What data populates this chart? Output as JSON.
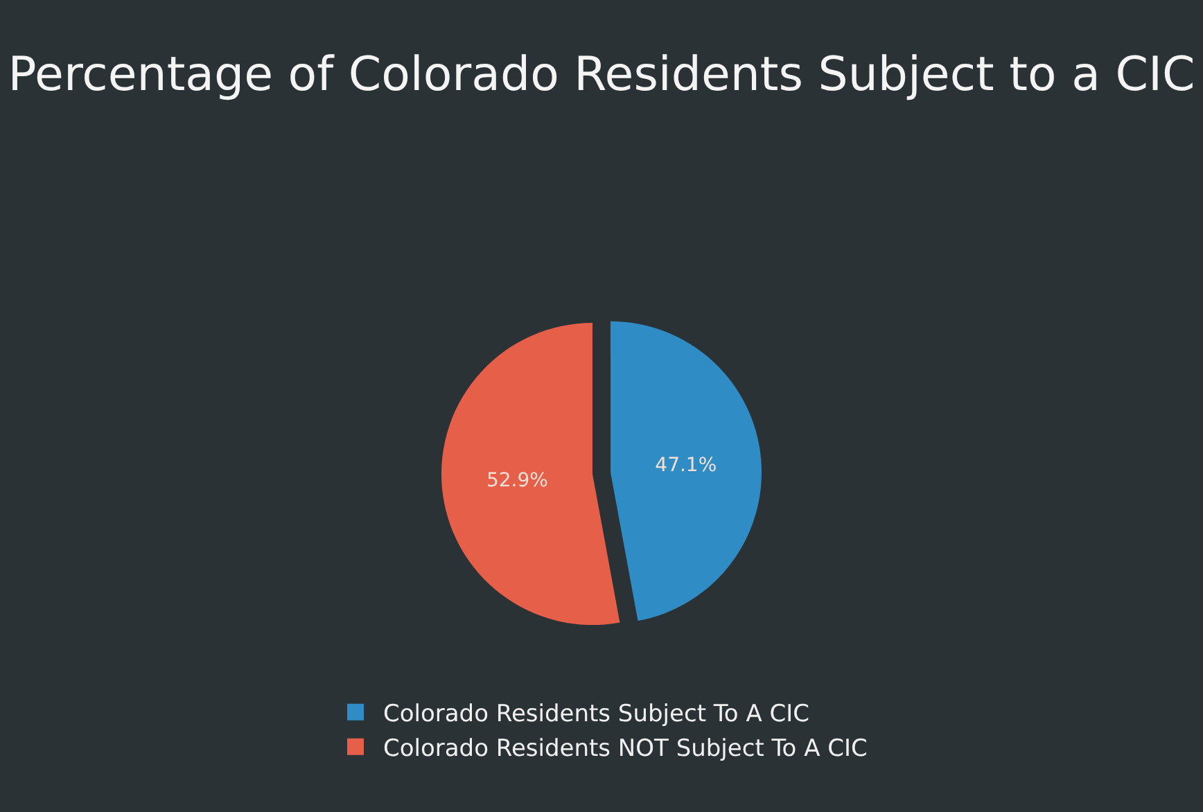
{
  "chart_data": {
    "type": "pie",
    "title": "Percentage of Colorado Residents Subject to a CIC",
    "categories": [
      "Colorado Residents Subject To A CIC",
      "Colorado Residents NOT Subject To A CIC"
    ],
    "values": [
      47.1,
      52.9
    ],
    "colors": [
      "#2f8cc4",
      "#e65f48"
    ],
    "value_labels": [
      "47.1%",
      "52.9%"
    ],
    "legend": "bottom"
  }
}
